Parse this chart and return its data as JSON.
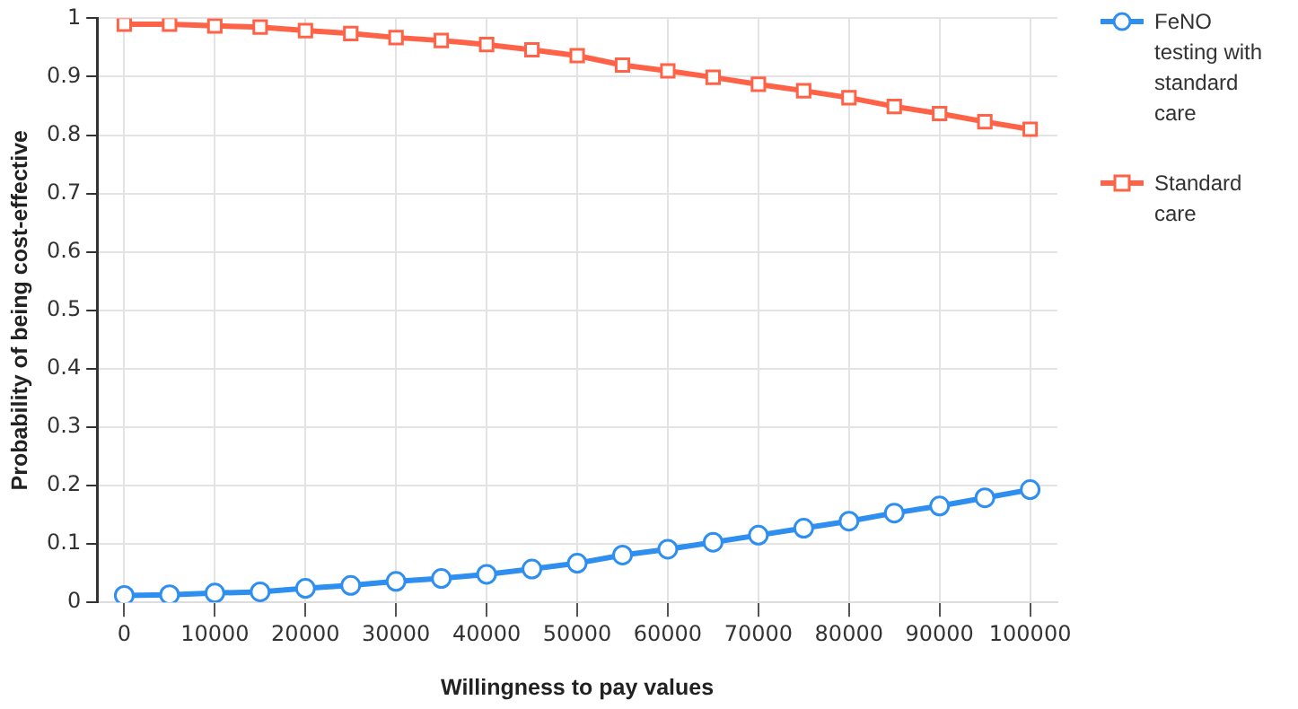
{
  "chart_data": {
    "type": "line",
    "xlabel": "Willingness to pay values",
    "ylabel": "Probability of being cost-effective",
    "x": [
      0,
      5000,
      10000,
      15000,
      20000,
      25000,
      30000,
      35000,
      40000,
      45000,
      50000,
      55000,
      60000,
      65000,
      70000,
      75000,
      80000,
      85000,
      90000,
      95000,
      100000
    ],
    "series": [
      {
        "name": "FeNO testing with standard care",
        "color": "#2f8ff0",
        "marker": "circle",
        "values": [
          0.012,
          0.013,
          0.016,
          0.018,
          0.024,
          0.029,
          0.036,
          0.041,
          0.048,
          0.057,
          0.067,
          0.081,
          0.091,
          0.103,
          0.115,
          0.127,
          0.139,
          0.153,
          0.165,
          0.179,
          0.193
        ]
      },
      {
        "name": "Standard care",
        "color": "#ff6347",
        "marker": "square",
        "values": [
          0.99,
          0.99,
          0.987,
          0.985,
          0.979,
          0.974,
          0.967,
          0.962,
          0.955,
          0.946,
          0.936,
          0.92,
          0.91,
          0.899,
          0.887,
          0.876,
          0.864,
          0.849,
          0.837,
          0.823,
          0.81
        ]
      }
    ],
    "xlim": [
      -3000,
      103000
    ],
    "xticks": [
      0,
      10000,
      20000,
      30000,
      40000,
      50000,
      60000,
      70000,
      80000,
      90000,
      100000
    ],
    "ylim": [
      0,
      1
    ],
    "yticks": [
      0,
      0.1,
      0.2,
      0.3,
      0.4,
      0.5,
      0.6,
      0.7,
      0.8,
      0.9,
      1
    ],
    "grid": true,
    "legend": "top right"
  }
}
